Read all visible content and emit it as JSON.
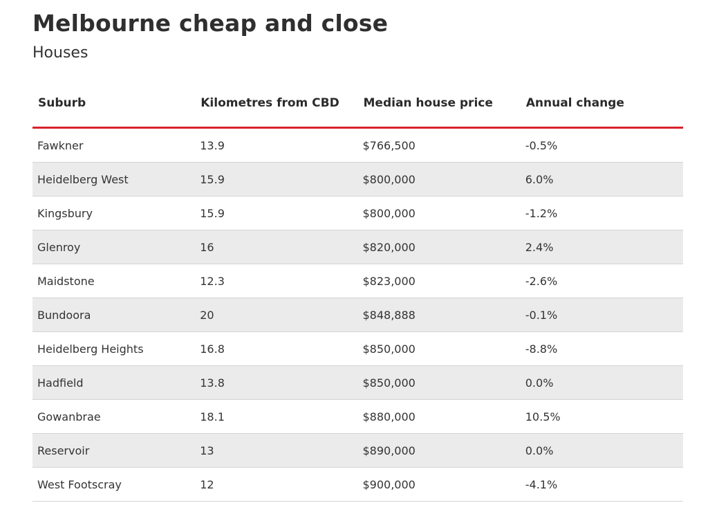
{
  "header": {
    "title": "Melbourne cheap and close",
    "subtitle": "Houses"
  },
  "table": {
    "columns": [
      "Suburb",
      "Kilometres from CBD",
      "Median house price",
      "Annual change"
    ],
    "rows": [
      [
        "Fawkner",
        "13.9",
        "$766,500",
        "-0.5%"
      ],
      [
        "Heidelberg West",
        "15.9",
        "$800,000",
        "6.0%"
      ],
      [
        "Kingsbury",
        "15.9",
        "$800,000",
        "-1.2%"
      ],
      [
        "Glenroy",
        "16",
        "$820,000",
        "2.4%"
      ],
      [
        "Maidstone",
        "12.3",
        "$823,000",
        "-2.6%"
      ],
      [
        "Bundoora",
        "20",
        "$848,888",
        "-0.1%"
      ],
      [
        "Heidelberg Heights",
        "16.8",
        "$850,000",
        "-8.8%"
      ],
      [
        "Hadfield",
        "13.8",
        "$850,000",
        "0.0%"
      ],
      [
        "Gowanbrae",
        "18.1",
        "$880,000",
        "10.5%"
      ],
      [
        "Reservoir",
        "13",
        "$890,000",
        "0.0%"
      ],
      [
        "West Footscray",
        "12",
        "$900,000",
        "-4.1%"
      ]
    ]
  }
}
